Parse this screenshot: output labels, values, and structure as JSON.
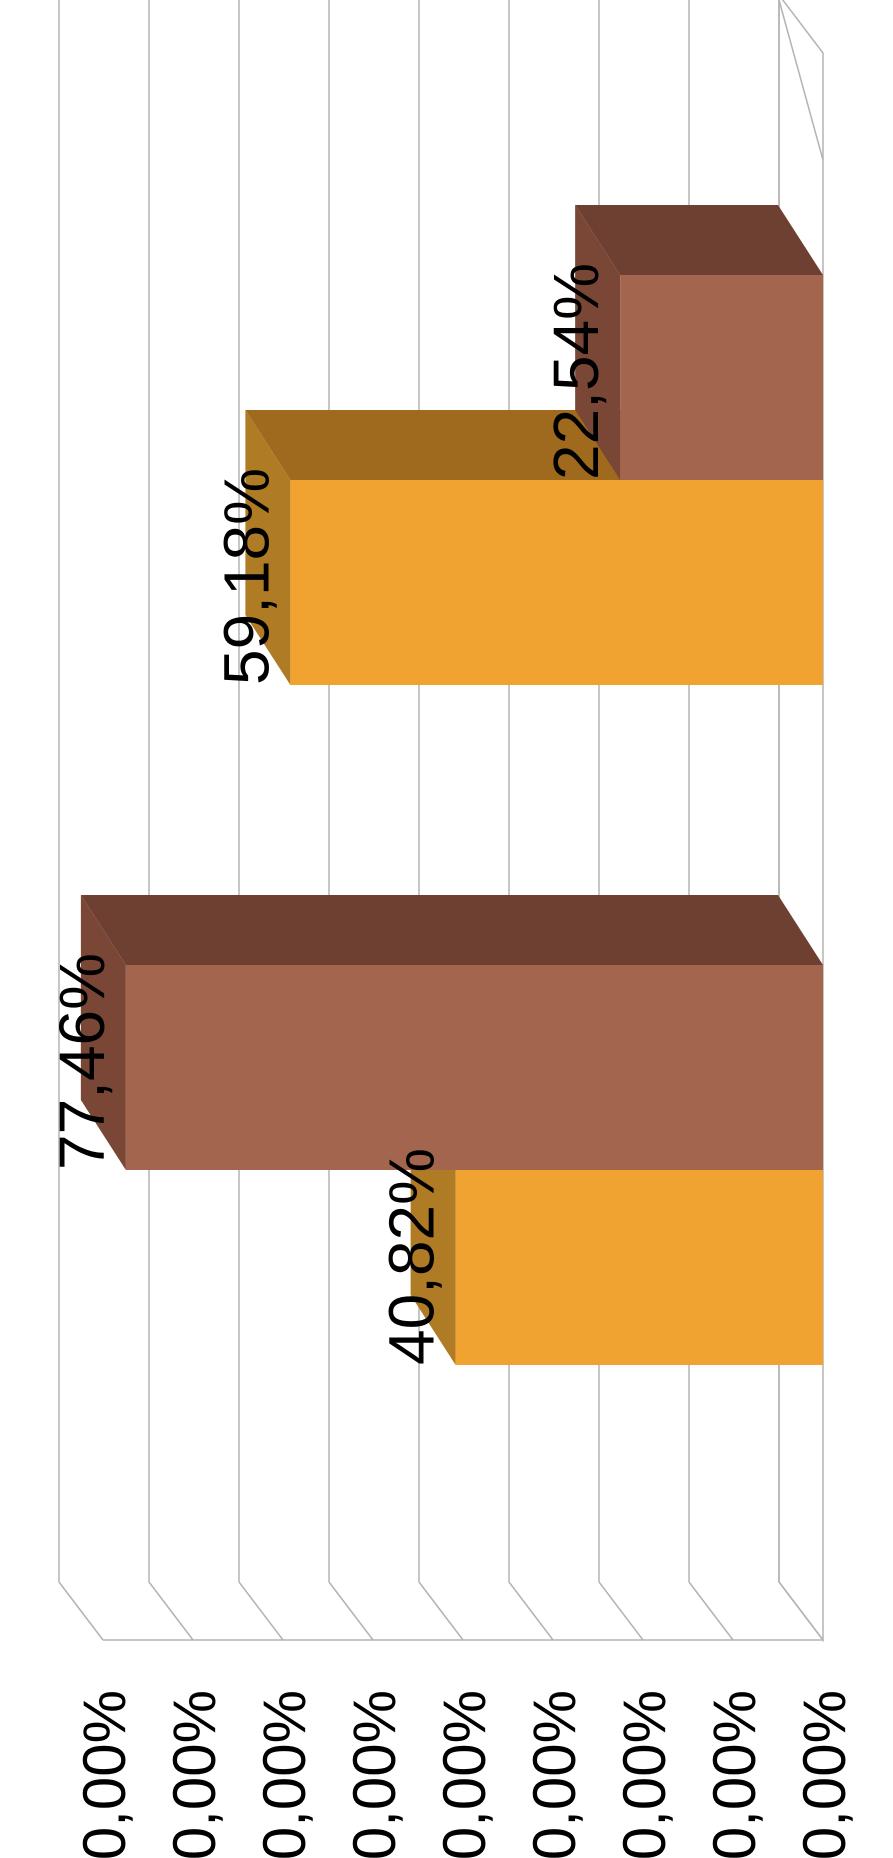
{
  "chart_data": {
    "type": "bar",
    "orientation": "3d-column, image rotated 90 degrees clockwise",
    "categories": [
      "",
      ""
    ],
    "series": [
      {
        "values": [
          40.82,
          59.18
        ],
        "color": "#F0A330",
        "labels": [
          "40,82%",
          "59,18%"
        ]
      },
      {
        "values": [
          77.46,
          22.54
        ],
        "color": "#A4654F",
        "labels": [
          "77,46%",
          "22,54%"
        ]
      }
    ],
    "yaxis": {
      "ticks": [
        "0,00%",
        "0,00%",
        "0,00%",
        "0,00%",
        "0,00%",
        "0,00%",
        "0,00%",
        "0,00%",
        "0,00%"
      ]
    },
    "ylim": [
      0,
      80
    ],
    "grid": true,
    "legend": "none",
    "colors": {
      "series_1_front": "#F0A330",
      "series_1_top": "#A06A1E",
      "series_1_side": "#B07B25",
      "series_2_front": "#A4654F",
      "series_2_top": "#6E4032",
      "series_2_side": "#7A4737",
      "gridline": "#B3B3B3"
    }
  }
}
